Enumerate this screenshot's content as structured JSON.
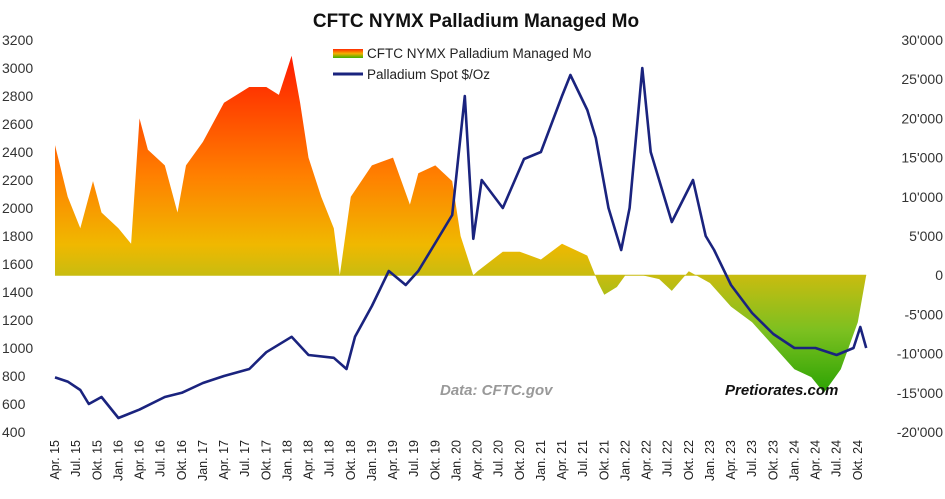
{
  "chart_data": {
    "type": "area+line",
    "title": "CFTC NYMX Palladium Managed Mo",
    "legend": {
      "placement": "top-center",
      "entries": [
        "CFTC NYMX Palladium Managed Mo",
        "Palladium Spot  $/Oz"
      ]
    },
    "annotations": {
      "source": "Data: CFTC.gov",
      "brand": "Pretiorates.com"
    },
    "y_left": {
      "range": [
        400,
        3200
      ],
      "ticks": [
        "400",
        "600",
        "800",
        "1000",
        "1200",
        "1400",
        "1600",
        "1800",
        "2000",
        "2200",
        "2400",
        "2600",
        "2800",
        "3000",
        "3200"
      ]
    },
    "y_right": {
      "range": [
        -20000,
        30000
      ],
      "ticks": [
        "-20'000",
        "-15'000",
        "-10'000",
        "-5'000",
        "0",
        "5'000",
        "10'000",
        "15'000",
        "20'000",
        "25'000",
        "30'000"
      ]
    },
    "x_ticks": [
      "Apr. 15",
      "Jul. 15",
      "Okt. 15",
      "Jan. 16",
      "Apr. 16",
      "Jul. 16",
      "Okt. 16",
      "Jan. 17",
      "Apr. 17",
      "Jul. 17",
      "Okt. 17",
      "Jan. 18",
      "Apr. 18",
      "Jul. 18",
      "Okt. 18",
      "Jan. 19",
      "Apr. 19",
      "Jul. 19",
      "Okt. 19",
      "Jan. 20",
      "Apr. 20",
      "Jul. 20",
      "Okt. 20",
      "Jan. 21",
      "Apr. 21",
      "Jul. 21",
      "Okt. 21",
      "Jan. 22",
      "Apr. 22",
      "Jul. 22",
      "Okt. 22",
      "Jan. 23",
      "Apr. 23",
      "Jul. 23",
      "Okt. 23",
      "Jan. 24",
      "Apr. 24",
      "Jul. 24",
      "Okt. 24"
    ],
    "series": [
      {
        "name": "CFTC NYMX Palladium Managed Mo",
        "axis": "right",
        "kind": "area",
        "points": [
          [
            2015.25,
            16600
          ],
          [
            2015.4,
            10000
          ],
          [
            2015.55,
            6000
          ],
          [
            2015.7,
            12000
          ],
          [
            2015.8,
            8000
          ],
          [
            2016.0,
            6000
          ],
          [
            2016.15,
            4000
          ],
          [
            2016.25,
            20000
          ],
          [
            2016.35,
            16000
          ],
          [
            2016.55,
            14000
          ],
          [
            2016.7,
            8000
          ],
          [
            2016.8,
            14000
          ],
          [
            2017.0,
            17000
          ],
          [
            2017.25,
            22000
          ],
          [
            2017.55,
            24000
          ],
          [
            2017.75,
            24000
          ],
          [
            2017.9,
            23000
          ],
          [
            2018.05,
            28000
          ],
          [
            2018.15,
            22000
          ],
          [
            2018.25,
            15000
          ],
          [
            2018.4,
            10000
          ],
          [
            2018.55,
            6000
          ],
          [
            2018.62,
            0
          ],
          [
            2018.75,
            10000
          ],
          [
            2019.0,
            14000
          ],
          [
            2019.25,
            15000
          ],
          [
            2019.45,
            9000
          ],
          [
            2019.55,
            13000
          ],
          [
            2019.75,
            14000
          ],
          [
            2019.95,
            12000
          ],
          [
            2020.05,
            5000
          ],
          [
            2020.2,
            0
          ],
          [
            2020.25,
            500
          ],
          [
            2020.55,
            3000
          ],
          [
            2020.75,
            3000
          ],
          [
            2021.0,
            2000
          ],
          [
            2021.25,
            4000
          ],
          [
            2021.55,
            2500
          ],
          [
            2021.68,
            -1000
          ],
          [
            2021.75,
            -2500
          ],
          [
            2021.9,
            -1500
          ],
          [
            2022.0,
            0
          ],
          [
            2022.2,
            0
          ],
          [
            2022.4,
            -500
          ],
          [
            2022.55,
            -2000
          ],
          [
            2022.75,
            500
          ],
          [
            2023.0,
            -1000
          ],
          [
            2023.25,
            -4000
          ],
          [
            2023.5,
            -6000
          ],
          [
            2023.75,
            -9000
          ],
          [
            2024.0,
            -12000
          ],
          [
            2024.2,
            -13000
          ],
          [
            2024.35,
            -15000
          ],
          [
            2024.55,
            -12000
          ],
          [
            2024.75,
            -6000
          ],
          [
            2024.85,
            0
          ]
        ]
      },
      {
        "name": "Palladium Spot  $/Oz",
        "axis": "left",
        "kind": "line",
        "color": "#1a237e",
        "points": [
          [
            2015.25,
            790
          ],
          [
            2015.4,
            760
          ],
          [
            2015.55,
            700
          ],
          [
            2015.65,
            600
          ],
          [
            2015.8,
            650
          ],
          [
            2016.0,
            500
          ],
          [
            2016.25,
            560
          ],
          [
            2016.55,
            650
          ],
          [
            2016.75,
            680
          ],
          [
            2017.0,
            750
          ],
          [
            2017.25,
            800
          ],
          [
            2017.55,
            850
          ],
          [
            2017.75,
            970
          ],
          [
            2018.05,
            1080
          ],
          [
            2018.25,
            950
          ],
          [
            2018.55,
            930
          ],
          [
            2018.7,
            850
          ],
          [
            2018.8,
            1080
          ],
          [
            2019.0,
            1300
          ],
          [
            2019.2,
            1550
          ],
          [
            2019.4,
            1450
          ],
          [
            2019.55,
            1550
          ],
          [
            2019.75,
            1750
          ],
          [
            2019.95,
            1950
          ],
          [
            2020.1,
            2800
          ],
          [
            2020.2,
            1780
          ],
          [
            2020.3,
            2200
          ],
          [
            2020.55,
            2000
          ],
          [
            2020.8,
            2350
          ],
          [
            2021.0,
            2400
          ],
          [
            2021.25,
            2800
          ],
          [
            2021.35,
            2950
          ],
          [
            2021.55,
            2700
          ],
          [
            2021.65,
            2500
          ],
          [
            2021.8,
            2000
          ],
          [
            2021.95,
            1700
          ],
          [
            2022.05,
            2000
          ],
          [
            2022.2,
            3000
          ],
          [
            2022.3,
            2400
          ],
          [
            2022.55,
            1900
          ],
          [
            2022.8,
            2200
          ],
          [
            2022.95,
            1800
          ],
          [
            2023.05,
            1700
          ],
          [
            2023.25,
            1450
          ],
          [
            2023.5,
            1250
          ],
          [
            2023.75,
            1100
          ],
          [
            2024.0,
            1000
          ],
          [
            2024.25,
            1000
          ],
          [
            2024.5,
            950
          ],
          [
            2024.7,
            1000
          ],
          [
            2024.78,
            1150
          ],
          [
            2024.85,
            1000
          ]
        ]
      }
    ],
    "colors": {
      "area_top": "#ff2200",
      "area_mid": "#f5a800",
      "area_zero": "#c8c000",
      "area_bottom": "#33b000",
      "line": "#1a237e"
    }
  }
}
